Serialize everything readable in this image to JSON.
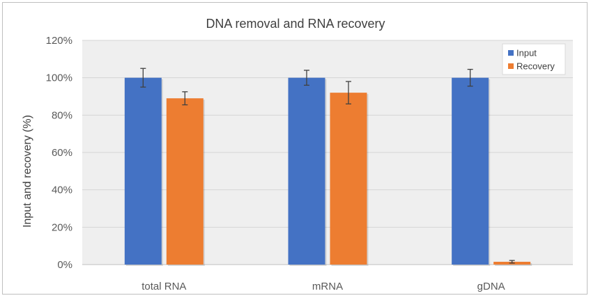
{
  "chart_data": {
    "type": "bar",
    "title": "DNA removal and RNA recovery",
    "xlabel": "",
    "ylabel": "Input and recovery (%)",
    "categories": [
      "total RNA",
      "mRNA",
      "gDNA"
    ],
    "series": [
      {
        "name": "Input",
        "values": [
          100,
          100,
          100
        ],
        "errors": [
          5,
          4,
          4.5
        ],
        "color": "#4472c4"
      },
      {
        "name": "Recovery",
        "values": [
          89,
          92,
          1.5
        ],
        "errors": [
          3.5,
          6,
          0.7
        ],
        "color": "#ed7d31"
      }
    ],
    "ylim": [
      0,
      120
    ],
    "yticks": [
      "0%",
      "20%",
      "40%",
      "60%",
      "80%",
      "100%",
      "120%"
    ],
    "ytick_values": [
      0,
      20,
      40,
      60,
      80,
      100,
      120
    ],
    "grid": true,
    "legend_position": "top-right",
    "colors": {
      "plot_background": "#efefef",
      "gridline": "#d4d4d4",
      "error_bar": "#404040"
    }
  }
}
